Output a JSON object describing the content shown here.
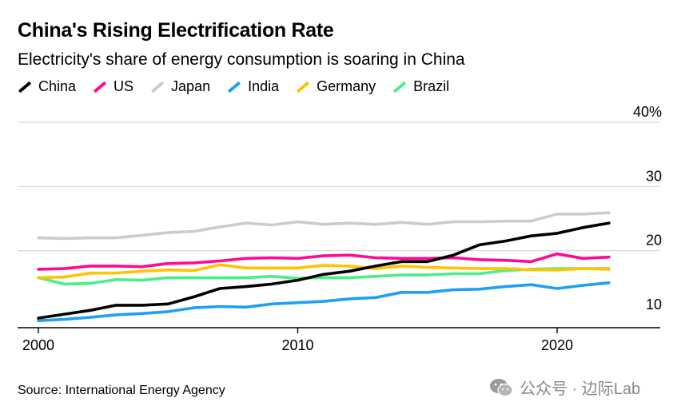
{
  "title": "China's Rising Electrification Rate",
  "subtitle": "Electricity's share of energy consumption is soaring in China",
  "source": "Source: International Energy Agency",
  "watermark": "公众号 · 边际Lab",
  "chart_data": {
    "type": "line",
    "title": "China's Rising Electrification Rate",
    "subtitle": "Electricity's share of energy consumption is soaring in China",
    "xlabel": "",
    "ylabel": "",
    "x": [
      2000,
      2001,
      2002,
      2003,
      2004,
      2005,
      2006,
      2007,
      2008,
      2009,
      2010,
      2011,
      2012,
      2013,
      2014,
      2015,
      2016,
      2017,
      2018,
      2019,
      2020,
      2021,
      2022
    ],
    "xlim": [
      2000,
      2024.1
    ],
    "ylim": [
      8,
      40
    ],
    "x_ticks": [
      2000,
      2010,
      2020
    ],
    "x_tick_labels": [
      "2000",
      "2010",
      "2020"
    ],
    "y_ticks": [
      10,
      20,
      30,
      40
    ],
    "y_tick_labels": [
      "10",
      "20",
      "30",
      "40%"
    ],
    "grid": true,
    "legend_position": "top-left",
    "series": [
      {
        "name": "China",
        "color": "#000000",
        "values": [
          9.5,
          10.1,
          10.7,
          11.5,
          11.5,
          11.7,
          12.8,
          14.1,
          14.4,
          14.8,
          15.4,
          16.3,
          16.8,
          17.6,
          18.3,
          18.3,
          19.3,
          20.9,
          21.5,
          22.3,
          22.7,
          23.6,
          24.3
        ]
      },
      {
        "name": "US",
        "color": "#ff0a90",
        "values": [
          17.1,
          17.2,
          17.6,
          17.6,
          17.5,
          18.0,
          18.1,
          18.4,
          18.8,
          18.9,
          18.8,
          19.2,
          19.3,
          18.9,
          18.8,
          18.8,
          18.9,
          18.6,
          18.5,
          18.3,
          19.5,
          18.8,
          19.0
        ]
      },
      {
        "name": "Japan",
        "color": "#cccccc",
        "values": [
          22.0,
          21.9,
          22.0,
          22.0,
          22.4,
          22.8,
          23.0,
          23.7,
          24.3,
          24.0,
          24.5,
          24.1,
          24.3,
          24.1,
          24.4,
          24.1,
          24.5,
          24.5,
          24.6,
          24.6,
          25.7,
          25.7,
          25.9
        ]
      },
      {
        "name": "India",
        "color": "#1fa0f5",
        "values": [
          9.1,
          9.3,
          9.6,
          10.0,
          10.2,
          10.5,
          11.1,
          11.3,
          11.2,
          11.7,
          11.9,
          12.1,
          12.5,
          12.7,
          13.5,
          13.5,
          13.9,
          14.0,
          14.4,
          14.7,
          14.1,
          14.6,
          15.0
        ]
      },
      {
        "name": "Germany",
        "color": "#ffc400",
        "values": [
          15.8,
          15.9,
          16.5,
          16.5,
          16.8,
          17.0,
          16.9,
          17.8,
          17.3,
          17.3,
          17.3,
          17.7,
          17.6,
          17.2,
          17.6,
          17.4,
          17.3,
          17.2,
          17.2,
          17.0,
          17.0,
          17.2,
          17.1
        ]
      },
      {
        "name": "Brazil",
        "color": "#4cee8c",
        "values": [
          15.8,
          14.8,
          14.9,
          15.5,
          15.4,
          15.8,
          15.8,
          15.8,
          15.8,
          16.0,
          15.7,
          15.8,
          15.8,
          16.0,
          16.2,
          16.2,
          16.4,
          16.4,
          16.9,
          17.1,
          17.2,
          17.2,
          17.2
        ]
      }
    ]
  }
}
